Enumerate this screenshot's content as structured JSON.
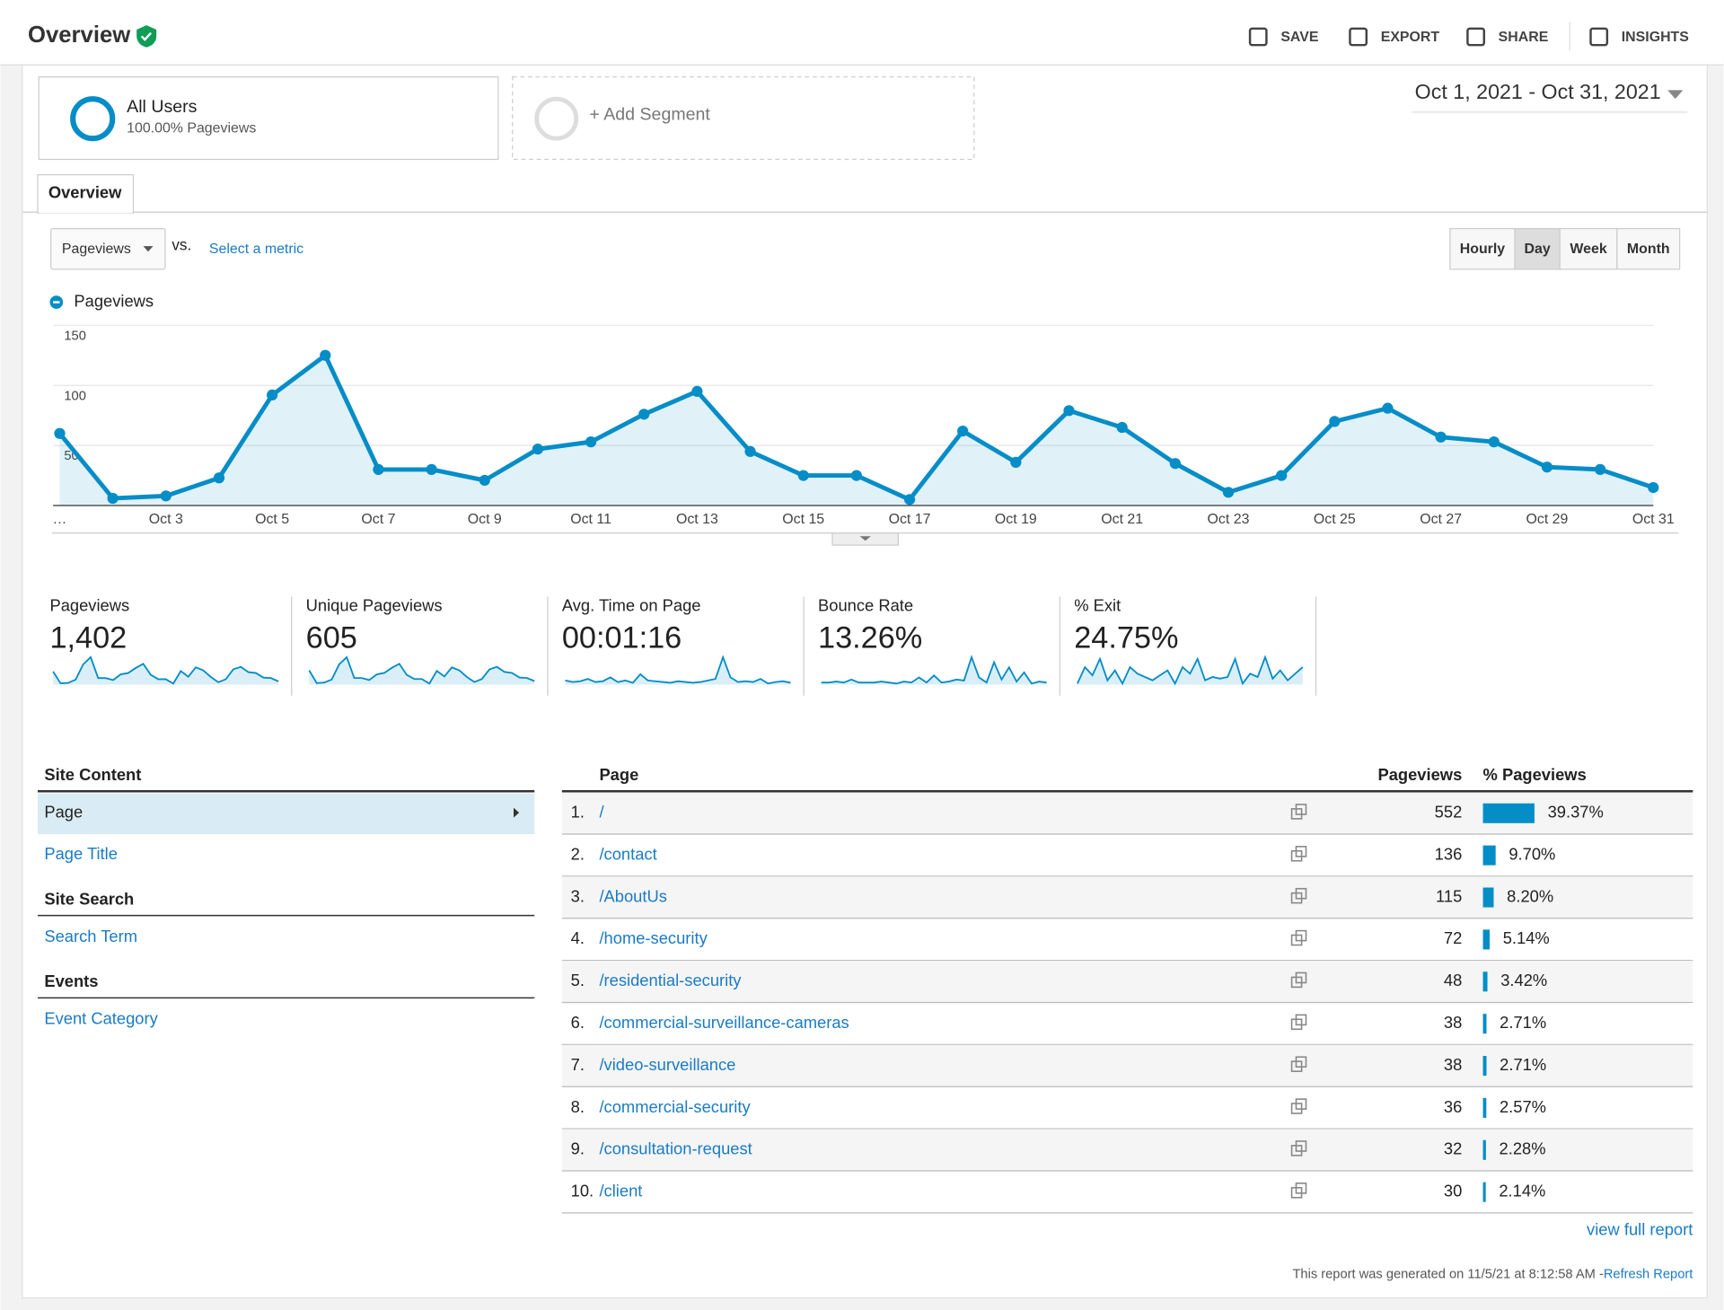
{
  "header": {
    "title": "Overview",
    "actions": [
      "SAVE",
      "EXPORT",
      "SHARE",
      "INSIGHTS"
    ]
  },
  "segments": [
    {
      "name": "All Users",
      "detail": "100.00% Pageviews"
    },
    {
      "name": "+ Add Segment"
    }
  ],
  "date_range": "Oct 1, 2021 - Oct 31, 2021",
  "tab": "Overview",
  "controls": {
    "metric": "Pageviews",
    "vs": "vs.",
    "select_metric": "Select a metric",
    "granularity": [
      {
        "label": "Hourly"
      },
      {
        "label": "Day",
        "selected": true
      },
      {
        "label": "Week"
      },
      {
        "label": "Month"
      }
    ]
  },
  "chart_data": {
    "type": "line",
    "categories": [
      "…",
      null,
      "Oct 3",
      null,
      "Oct 5",
      null,
      "Oct 7",
      null,
      "Oct 9",
      null,
      "Oct 11",
      null,
      "Oct 13",
      null,
      "Oct 15",
      null,
      "Oct 17",
      null,
      "Oct 19",
      null,
      "Oct 21",
      null,
      "Oct 23",
      null,
      "Oct 25",
      null,
      "Oct 27",
      null,
      "Oct 29",
      null,
      "Oct 31"
    ],
    "series": [
      {
        "name": "Pageviews",
        "color": "#058dc7",
        "values": [
          60,
          6,
          8,
          23,
          92,
          125,
          30,
          30,
          21,
          47,
          53,
          76,
          95,
          45,
          25,
          25,
          5,
          62,
          36,
          79,
          65,
          35,
          11,
          25,
          70,
          81,
          57,
          53,
          32,
          30,
          15
        ]
      }
    ],
    "ylim": [
      0,
      150
    ],
    "yticks": [
      50,
      100,
      150
    ],
    "grid": true
  },
  "scorecards": [
    {
      "label": "Pageviews",
      "value": "1,402",
      "sparkline": [
        60,
        6,
        8,
        23,
        92,
        125,
        30,
        30,
        21,
        47,
        53,
        76,
        95,
        45,
        25,
        25,
        5,
        62,
        36,
        79,
        65,
        35,
        11,
        25,
        70,
        81,
        57,
        53,
        32,
        30,
        15
      ]
    },
    {
      "label": "Unique Pageviews",
      "value": "605",
      "sparkline": [
        28,
        3,
        4,
        10,
        40,
        54,
        13,
        13,
        9,
        20,
        23,
        33,
        41,
        19,
        11,
        11,
        2,
        27,
        16,
        34,
        28,
        15,
        5,
        11,
        30,
        35,
        25,
        23,
        14,
        13,
        7
      ]
    },
    {
      "label": "Avg. Time on Page",
      "value": "00:01:16",
      "sparkline": [
        10,
        8,
        9,
        12,
        8,
        9,
        14,
        8,
        10,
        7,
        18,
        10,
        9,
        8,
        7,
        9,
        8,
        7,
        8,
        10,
        12,
        40,
        14,
        8,
        9,
        8,
        12,
        6,
        8,
        9,
        7
      ]
    },
    {
      "label": "Bounce Rate",
      "value": "13.26%",
      "sparkline": [
        5,
        5,
        6,
        5,
        8,
        5,
        5,
        5,
        6,
        5,
        4,
        6,
        5,
        10,
        5,
        12,
        5,
        6,
        8,
        7,
        30,
        10,
        5,
        25,
        8,
        20,
        6,
        15,
        4,
        6,
        5
      ]
    },
    {
      "label": "% Exit",
      "value": "24.75%",
      "sparkline": [
        20,
        30,
        25,
        35,
        22,
        28,
        20,
        30,
        26,
        24,
        22,
        25,
        28,
        20,
        30,
        26,
        35,
        22,
        24,
        23,
        24,
        35,
        20,
        26,
        24,
        36,
        23,
        28,
        22,
        26,
        30
      ]
    }
  ],
  "site_content": {
    "sections": [
      {
        "title": "Site Content",
        "items": [
          "Page",
          "Page Title"
        ]
      },
      {
        "title": "Site Search",
        "items": [
          "Search Term"
        ]
      },
      {
        "title": "Events",
        "items": [
          "Event Category"
        ]
      }
    ]
  },
  "table": {
    "columns": [
      "Page",
      "Pageviews",
      "% Pageviews"
    ],
    "rows": [
      {
        "rank": "1.",
        "page": "/",
        "pageviews": 552,
        "percent": 39.37,
        "percent_label": "39.37%"
      },
      {
        "rank": "2.",
        "page": "/contact",
        "pageviews": 136,
        "percent": 9.7,
        "percent_label": "9.70%"
      },
      {
        "rank": "3.",
        "page": "/AboutUs",
        "pageviews": 115,
        "percent": 8.2,
        "percent_label": "8.20%"
      },
      {
        "rank": "4.",
        "page": "/home-security",
        "pageviews": 72,
        "percent": 5.14,
        "percent_label": "5.14%"
      },
      {
        "rank": "5.",
        "page": "/residential-security",
        "pageviews": 48,
        "percent": 3.42,
        "percent_label": "3.42%"
      },
      {
        "rank": "6.",
        "page": "/commercial-surveillance-cameras",
        "pageviews": 38,
        "percent": 2.71,
        "percent_label": "2.71%"
      },
      {
        "rank": "7.",
        "page": "/video-surveillance",
        "pageviews": 38,
        "percent": 2.71,
        "percent_label": "2.71%"
      },
      {
        "rank": "8.",
        "page": "/commercial-security",
        "pageviews": 36,
        "percent": 2.57,
        "percent_label": "2.57%"
      },
      {
        "rank": "9.",
        "page": "/consultation-request",
        "pageviews": 32,
        "percent": 2.28,
        "percent_label": "2.28%"
      },
      {
        "rank": "10.",
        "page": "/client",
        "pageviews": 30,
        "percent": 2.14,
        "percent_label": "2.14%"
      }
    ]
  },
  "footer": {
    "link": "view full report",
    "generated": "This report was generated on 11/5/21 at 8:12:58 AM - ",
    "refresh": "Refresh Report"
  }
}
